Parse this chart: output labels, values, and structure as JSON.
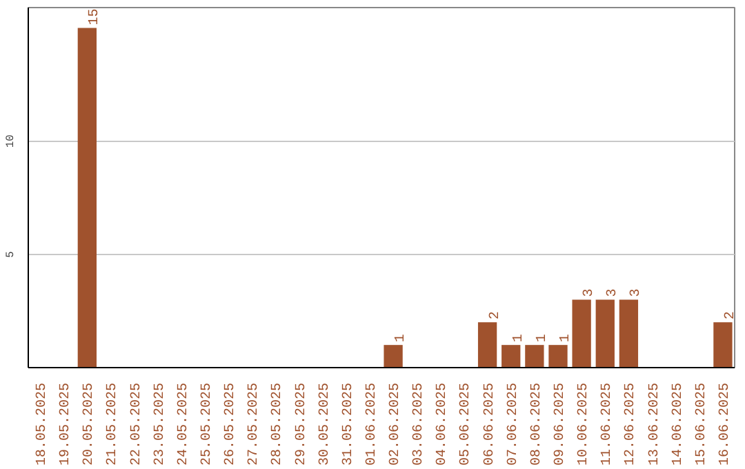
{
  "chart_data": {
    "type": "bar",
    "categories": [
      "18.05.2025",
      "19.05.2025",
      "20.05.2025",
      "21.05.2025",
      "22.05.2025",
      "23.05.2025",
      "24.05.2025",
      "25.05.2025",
      "26.05.2025",
      "27.05.2025",
      "28.05.2025",
      "29.05.2025",
      "30.05.2025",
      "31.05.2025",
      "01.06.2025",
      "02.06.2025",
      "03.06.2025",
      "04.06.2025",
      "05.06.2025",
      "06.06.2025",
      "07.06.2025",
      "08.06.2025",
      "09.06.2025",
      "10.06.2025",
      "11.06.2025",
      "12.06.2025",
      "13.06.2025",
      "14.06.2025",
      "15.06.2025",
      "16.06.2025"
    ],
    "values": [
      0,
      0,
      15,
      0,
      0,
      0,
      0,
      0,
      0,
      0,
      0,
      0,
      0,
      0,
      0,
      1,
      0,
      0,
      0,
      2,
      1,
      1,
      1,
      3,
      3,
      3,
      0,
      0,
      0,
      2
    ],
    "value_labels": [
      null,
      null,
      "15",
      null,
      null,
      null,
      null,
      null,
      null,
      null,
      null,
      null,
      null,
      null,
      null,
      "1",
      null,
      null,
      null,
      "2",
      "1",
      "1",
      "1",
      "3",
      "3",
      "3",
      null,
      null,
      null,
      "2"
    ],
    "color": "#a0522d",
    "ylim": [
      0,
      15.9
    ],
    "yticks": [
      5,
      10
    ],
    "grid": "y"
  }
}
